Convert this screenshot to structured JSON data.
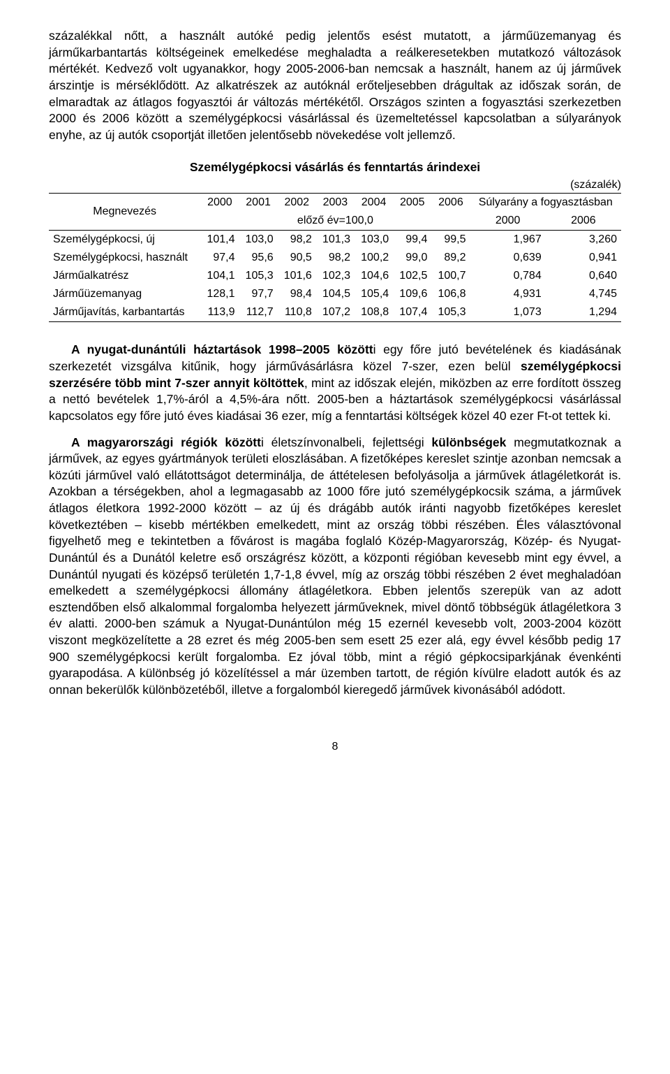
{
  "paragraphs": {
    "p1": "százalékkal nőtt, a használt autóké pedig jelentős esést mutatott, a járműüzemanyag és járműkarbantartás költségeinek emelkedése meghaladta a reálkeresetekben mutatkozó változások mértékét. Kedvező volt ugyanakkor, hogy 2005-2006-ban nemcsak a használt, hanem az új járművek árszintje is mérséklődött. Az alkatrészek az autóknál erőteljesebben drágultak az időszak során, de elmaradtak az átlagos fogyasztói ár változás mértékétől. Országos szinten a fogyasztási szerkezetben 2000 és 2006 között a személygépkocsi vásárlással és üzemeltetéssel kapcsolatban a súlyarányok enyhe, az új autók csoportját illetően jelentősebb növekedése volt jellemző.",
    "p2": "A nyugat-dunántúli háztartások 1998–2005 között",
    "p2b": "i egy főre jutó bevételének és kiadásának szerkezetét vizsgálva kitűnik, hogy járművásárlásra közel 7-szer, ezen belül ",
    "p2c": "személygépkocsi szerzésére több mint 7-szer annyit költöttek",
    "p2d": ", mint az időszak elején, miközben az erre fordított összeg a nettó bevételek 1,7%-áról a 4,5%-ára nőtt. 2005-ben a háztartások személygépkocsi vásárlással kapcsolatos egy főre jutó éves kiadásai 36 ezer, míg a fenntartási költségek közel 40 ezer Ft-ot tettek ki.",
    "p3a": "A magyarországi régiók között",
    "p3b": "i életszínvonalbeli, fejlettségi ",
    "p3c": "különbségek",
    "p3d": " megmutatkoznak a járművek, az egyes gyártmányok területi eloszlásában. A fizetőképes kereslet szintje azonban nemcsak a közúti járművel való ellátottságot determinálja, de áttételesen befolyásolja a járművek átlagéletkorát is. Azokban a térségekben, ahol a legmagasabb az 1000 főre jutó személygépkocsik száma, a járművek átlagos életkora 1992-2000 között – az új és drágább autók iránti nagyobb fizetőképes kereslet következtében – kisebb mértékben emelkedett, mint az ország többi részében. Éles választóvonal figyelhető meg e tekintetben a fővárost is magába foglaló Közép-Magyarország, Közép- és Nyugat-Dunántúl és a Dunától keletre eső országrész között, a központi régióban kevesebb mint egy évvel, a Dunántúl nyugati és középső területén 1,7-1,8 évvel, míg az ország többi részében 2 évet meghaladóan emelkedett a személygépkocsi állomány átlagéletkora. Ebben jelentős szerepük van az adott esztendőben első alkalommal forgalomba helyezett járműveknek, mivel döntő többségük átlagéletkora 3 év alatti. 2000-ben számuk a Nyugat-Dunántúlon még 15 ezernél kevesebb volt, 2003-2004 között viszont megközelítette a 28 ezret és még 2005-ben sem esett 25 ezer alá, egy évvel később pedig 17 900 személygépkocsi került forgalomba. Ez jóval több, mint a régió gépkocsiparkjának évenkénti gyarapodása. A különbség jó közelítéssel a már üzemben tartott, de régión kívülre eladott autók és az onnan bekerülők különbözetéből, illetve a forgalomból kieregedő járművek kivonásából adódott."
  },
  "table": {
    "title": "Személygépkocsi vásárlás és fenntartás árindexei",
    "unit": "(százalék)",
    "col_megnevezes": "Megnevezés",
    "years": [
      "2000",
      "2001",
      "2002",
      "2003",
      "2004",
      "2005",
      "2006"
    ],
    "suly_header": "Súlyarány a fogyasztásban",
    "subhead_left": "előző év=100,0",
    "subhead_right": [
      "2000",
      "2006"
    ],
    "rows": [
      {
        "label": "Személygépkocsi, új",
        "v": [
          "101,4",
          "103,0",
          "98,2",
          "101,3",
          "103,0",
          "99,4",
          "99,5",
          "1,967",
          "3,260"
        ]
      },
      {
        "label": "Személygépkocsi, használt",
        "v": [
          "97,4",
          "95,6",
          "90,5",
          "98,2",
          "100,2",
          "99,0",
          "89,2",
          "0,639",
          "0,941"
        ]
      },
      {
        "label": "Járműalkatrész",
        "v": [
          "104,1",
          "105,3",
          "101,6",
          "102,3",
          "104,6",
          "102,5",
          "100,7",
          "0,784",
          "0,640"
        ]
      },
      {
        "label": "Járműüzemanyag",
        "v": [
          "128,1",
          "97,7",
          "98,4",
          "104,5",
          "105,4",
          "109,6",
          "106,8",
          "4,931",
          "4,745"
        ]
      },
      {
        "label": "Járműjavítás, karbantartás",
        "v": [
          "113,9",
          "112,7",
          "110,8",
          "107,2",
          "108,8",
          "107,4",
          "105,3",
          "1,073",
          "1,294"
        ]
      }
    ]
  },
  "page_number": "8"
}
